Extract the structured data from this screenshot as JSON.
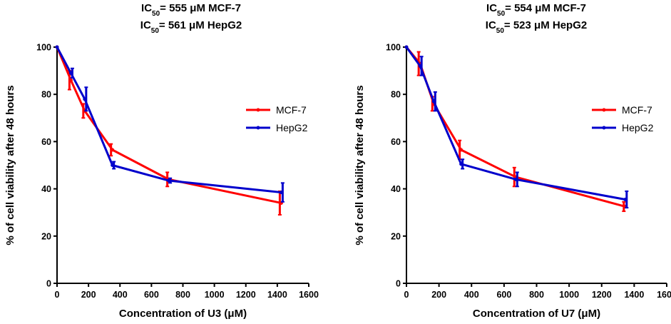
{
  "chart_data": [
    {
      "type": "line",
      "title_lines": [
        {
          "prefix": "IC",
          "sub": "50",
          "rest": "= 555 μM  MCF-7"
        },
        {
          "prefix": "IC",
          "sub": "50",
          "rest": "= 561 μM  HepG2"
        }
      ],
      "xlabel": "Concentration of U3 (μM)",
      "ylabel": "% of cell viability after 48 hours",
      "xlim": [
        0,
        1600
      ],
      "ylim": [
        0,
        100
      ],
      "xticks": [
        0,
        200,
        400,
        600,
        800,
        1000,
        1200,
        1400,
        1600
      ],
      "yticks": [
        0,
        20,
        40,
        60,
        80,
        100
      ],
      "legend_position": "middle-right",
      "series": [
        {
          "name": "MCF-7",
          "color": "#ff0000",
          "x": [
            0,
            88,
            176,
            352,
            710,
            1425
          ],
          "y": [
            100,
            86,
            73,
            56.5,
            44,
            34
          ],
          "err": [
            0,
            4,
            3,
            2.5,
            3,
            5
          ]
        },
        {
          "name": "HepG2",
          "color": "#0000cc",
          "x": [
            0,
            88,
            176,
            352,
            710,
            1425
          ],
          "y": [
            100,
            89,
            78,
            50,
            43.5,
            38.5
          ],
          "err": [
            0,
            2,
            5,
            1.5,
            1,
            4
          ]
        }
      ]
    },
    {
      "type": "line",
      "title_lines": [
        {
          "prefix": "IC",
          "sub": "50",
          "rest": "= 554 μM MCF-7"
        },
        {
          "prefix": "IC",
          "sub": "50",
          "rest": "= 523 μM  HepG2"
        }
      ],
      "xlabel": "Concentration of U7 (μM)",
      "ylabel": "% of cell viability after 48 hours",
      "xlim": [
        0,
        1600
      ],
      "ylim": [
        0,
        100
      ],
      "xticks": [
        0,
        200,
        400,
        600,
        800,
        1000,
        1200,
        1400,
        1600
      ],
      "yticks": [
        0,
        20,
        40,
        60,
        80,
        100
      ],
      "legend_position": "middle-right",
      "series": [
        {
          "name": "MCF-7",
          "color": "#ff0000",
          "x": [
            0,
            84,
            168,
            336,
            672,
            1345
          ],
          "y": [
            100,
            93,
            76,
            56.5,
            45,
            32.5
          ],
          "err": [
            0,
            5,
            3,
            4,
            4,
            2
          ]
        },
        {
          "name": "HepG2",
          "color": "#0000cc",
          "x": [
            0,
            84,
            168,
            336,
            672,
            1345
          ],
          "y": [
            100,
            92,
            77,
            50.5,
            44,
            35.5
          ],
          "err": [
            0,
            4,
            4,
            2,
            3,
            3.5
          ]
        }
      ]
    }
  ]
}
